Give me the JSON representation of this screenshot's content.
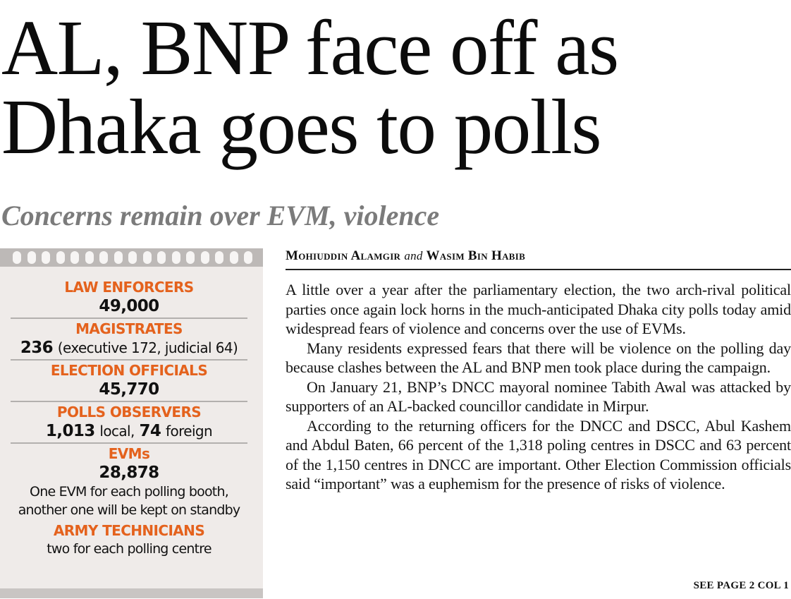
{
  "headline": {
    "line1": "AL, BNP face off as",
    "line2": "Dhaka goes to polls"
  },
  "subhead": "Concerns remain over EVM, violence",
  "factbox": {
    "accent_color": "#e4621d",
    "background_color": "#efebe9",
    "law_enforcers": {
      "label": "LAW ENFORCERS",
      "value": "49,000"
    },
    "magistrates": {
      "label": "MAGISTRATES",
      "value": "236",
      "detail": "(executive 172, judicial 64)"
    },
    "election_officials": {
      "label": "ELECTION OFFICIALS",
      "value": "45,770"
    },
    "polls_observers": {
      "label": "POLLS OBSERVERS",
      "local_value": "1,013",
      "local_label": "local,",
      "foreign_value": "74",
      "foreign_label": "foreign"
    },
    "evms": {
      "label": "EVMs",
      "value": "28,878",
      "note_line1": "One EVM for each polling booth,",
      "note_line2": "another one will be kept on standby"
    },
    "army_technicians": {
      "label": "ARMY TECHNICIANS",
      "note": "two for each polling centre"
    }
  },
  "byline": {
    "author1": "Mohiuddin Alamgir",
    "conjunction": "and",
    "author2": "Wasim Bin Habib"
  },
  "article": {
    "paragraphs": [
      "A little over a year after the parliamentary election, the two arch-rival political parties once again lock horns in the much-anticipated Dhaka city polls today amid widespread fears of violence and concerns over the use of EVMs.",
      "Many residents expressed fears that there will be violence on the polling day because clashes between the AL and BNP men took place during the campaign.",
      "On January 21, BNP’s DNCC mayoral nominee Tabith Awal was attacked by supporters of an AL-backed councillor candidate in Mirpur.",
      "According to the returning officers for the DNCC and DSCC, Abul Kashem and Abdul Baten, 66 percent of the 1,318 poling centres in DSCC and 63 percent of the 1,150 centres in DNCC are important. Other Election Commission officials said “important” was a euphemism for the presence of risks of violence."
    ]
  },
  "see_page": "SEE PAGE  2 COL 1"
}
